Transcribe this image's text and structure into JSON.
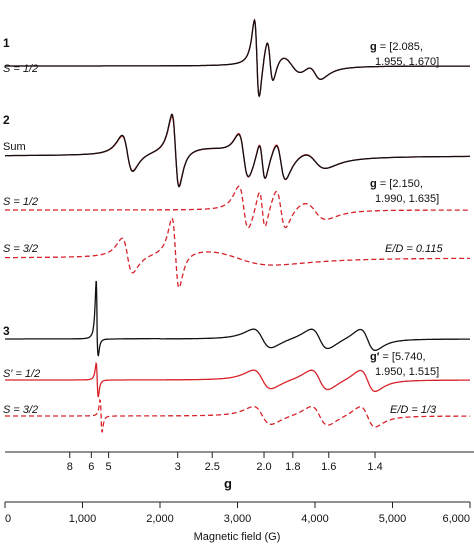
{
  "chart_data": {
    "type": "line",
    "x_unit": "G",
    "xlim": [
      0,
      6000
    ],
    "axis_field": {
      "label": "Magnetic field (G)",
      "ticks": [
        "0",
        "1,000",
        "2,000",
        "3,000",
        "4,000",
        "5,000",
        "6,000"
      ]
    },
    "axis_g": {
      "label": "g",
      "ticks": [
        "8",
        "6",
        "5",
        "3",
        "2.5",
        "2.0",
        "1.8",
        "1.6",
        "1.4"
      ]
    },
    "colors": {
      "experiment": "#111111",
      "simulation": "#d8232a"
    },
    "panels": [
      {
        "id": "1",
        "labels": {
          "number": "1",
          "spin": "S = 1/2",
          "g_bold": "g",
          "g_line1": " = [2.085,",
          "g_line2": "1.955, 1.670]"
        },
        "series": [
          {
            "kind": "experimental",
            "style": "solid",
            "color": "#111111",
            "features": [
              {
                "x": 3330,
                "amp": 1.0
              },
              {
                "x": 3600,
                "amp": -0.55
              }
            ]
          },
          {
            "kind": "simulation",
            "style": "solid",
            "color": "#d8232a",
            "features": [
              {
                "x": 3300,
                "amp": 1.1
              },
              {
                "x": 3650,
                "amp": -0.6
              }
            ]
          }
        ]
      },
      {
        "id": "2",
        "labels": {
          "number": "2",
          "sum": "Sum",
          "spin_a": "S = 1/2",
          "g_bold": "g",
          "g_line1": " = [2.150,",
          "g_line2": "1.990, 1.635]",
          "spin_b": "S = 3/2",
          "ed": "E/D = 0.115"
        },
        "series": [
          {
            "kind": "experimental",
            "style": "solid",
            "color": "#111111",
            "features": [
              {
                "x": 2180,
                "amp": 1.0
              },
              {
                "x": 3250,
                "amp": 0.7
              },
              {
                "x": 3600,
                "amp": -0.8
              }
            ]
          },
          {
            "kind": "simulation sum",
            "style": "solid",
            "color": "#d8232a",
            "features": [
              {
                "x": 1520,
                "amp": 0.4
              },
              {
                "x": 2180,
                "amp": 0.9
              },
              {
                "x": 3600,
                "amp": -0.7
              }
            ]
          },
          {
            "kind": "component S = 1/2",
            "style": "dashed",
            "color": "#d8232a",
            "features": [
              {
                "x": 3200,
                "amp": 0.6
              },
              {
                "x": 3600,
                "amp": -0.7
              }
            ]
          },
          {
            "kind": "component S = 3/2",
            "style": "dashed",
            "color": "#d8232a",
            "features": [
              {
                "x": 1520,
                "amp": 0.6
              },
              {
                "x": 2180,
                "amp": 0.9
              }
            ]
          }
        ]
      },
      {
        "id": "3",
        "labels": {
          "number": "3",
          "spin_a": "S′ = 1/2",
          "g_bold": "g′",
          "g_line1": " = [5.740,",
          "g_line2": "1.950, 1.515]",
          "spin_b": "S = 3/2",
          "ed": "E/D = 1/3"
        },
        "series": [
          {
            "kind": "experimental",
            "style": "solid",
            "color": "#111111",
            "features": [
              {
                "x": 1180,
                "amp": 1.0
              },
              {
                "x": 3600,
                "amp": -0.15
              },
              {
                "x": 4650,
                "amp": -0.15
              }
            ]
          },
          {
            "kind": "simulation S′ = 1/2",
            "style": "solid",
            "color": "#d8232a",
            "features": [
              {
                "x": 1180,
                "amp": 0.55
              },
              {
                "x": 3600,
                "amp": -0.2
              },
              {
                "x": 4650,
                "amp": -0.2
              }
            ]
          },
          {
            "kind": "component S = 3/2",
            "style": "dashed",
            "color": "#d8232a",
            "features": [
              {
                "x": 1250,
                "amp": 0.55
              },
              {
                "x": 3600,
                "amp": -0.15
              },
              {
                "x": 4650,
                "amp": -0.15
              }
            ]
          }
        ]
      }
    ]
  }
}
